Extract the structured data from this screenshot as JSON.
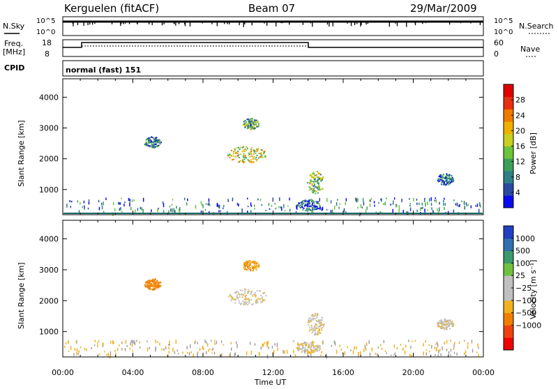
{
  "header": {
    "station": "Kerguelen (fitACF)",
    "beam": "Beam 07",
    "date": "29/Mar/2009"
  },
  "top_panels": {
    "nsky_label": "N.Sky",
    "nsky_ticks": [
      "10^5",
      "10^0"
    ],
    "nsearch_label": "N.Search",
    "nsearch_ticks": [
      "10^5",
      "10^0"
    ],
    "freq_label": "Freq.",
    "freq_unit": "[MHz]",
    "freq_ticks": [
      "18",
      "8"
    ],
    "nave_label": "Nave",
    "nave_ticks": [
      "60",
      "0"
    ],
    "cpid_label": "CPID",
    "cpid_value": "normal (fast) 151"
  },
  "chart_data": [
    {
      "type": "heatmap",
      "name": "power",
      "ylabel": "Slant Range [km]",
      "ylim": [
        180,
        4600
      ],
      "yticks": [
        "1000",
        "2000",
        "3000",
        "4000"
      ],
      "xlim": [
        0,
        24
      ],
      "colorbar": {
        "label": "Power [dB]",
        "range": [
          0,
          32
        ],
        "ticks": [
          "4",
          "8",
          "12",
          "16",
          "20",
          "24",
          "28"
        ],
        "colors": [
          "#0a0af0",
          "#2a4aa0",
          "#2e7f85",
          "#3b9e5a",
          "#6bc43a",
          "#c8d020",
          "#f0b000",
          "#f07a00",
          "#e83010",
          "#e00000"
        ]
      },
      "echo_regions": [
        {
          "t": 5.1,
          "range_km": 2550,
          "level": 8
        },
        {
          "t": 10.7,
          "range_km": 3150,
          "level": 12
        },
        {
          "t": 10.5,
          "range_km": 2150,
          "level": 18
        },
        {
          "t": 14.4,
          "range_km": 1250,
          "level": 14
        },
        {
          "t": 14.0,
          "range_km": 500,
          "level": 6
        },
        {
          "t": 21.8,
          "range_km": 1350,
          "level": 6
        }
      ]
    },
    {
      "type": "heatmap",
      "name": "velocity",
      "ylabel": "Slant Range [km]",
      "ylim": [
        180,
        4600
      ],
      "yticks": [
        "1000",
        "2000",
        "3000",
        "4000"
      ],
      "xlim": [
        0,
        24
      ],
      "xlabel": "Time UT",
      "xticks": [
        "00:00",
        "04:00",
        "08:00",
        "12:00",
        "16:00",
        "20:00",
        "00:00"
      ],
      "colorbar": {
        "label": "Velocity [m s⁻¹]",
        "ticks": [
          "1000",
          "500",
          "100",
          "25",
          "−25",
          "−100",
          "−500",
          "−1000"
        ],
        "colors": [
          "#2040c0",
          "#3070b0",
          "#3a9a6a",
          "#70c040",
          "#c0c0c0",
          "#c0c0c0",
          "#f0b020",
          "#f08000",
          "#f04010",
          "#f00000"
        ]
      },
      "echo_regions": [
        {
          "t": 5.1,
          "range_km": 2550,
          "velocity": -300
        },
        {
          "t": 10.7,
          "range_km": 3150,
          "velocity": -100
        },
        {
          "t": 10.5,
          "range_km": 2150,
          "velocity": 0
        },
        {
          "t": 14.4,
          "range_km": 1250,
          "velocity": 0
        },
        {
          "t": 14.0,
          "range_km": 500,
          "velocity": 0
        },
        {
          "t": 21.8,
          "range_km": 1250,
          "velocity": 0
        }
      ]
    }
  ],
  "colors": {
    "ground_line": "#1a6a6a",
    "axis": "#000000",
    "ground_scatter": "#a0a0a0"
  }
}
